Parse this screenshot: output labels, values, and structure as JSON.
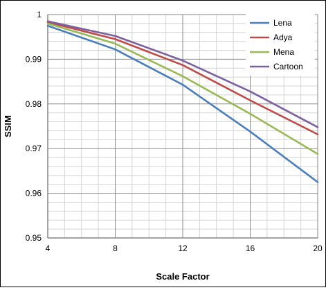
{
  "chart_data": {
    "type": "line",
    "xlabel": "Scale Factor",
    "ylabel": "SSIM",
    "x": [
      4,
      8,
      12,
      16,
      20
    ],
    "xlim": [
      4,
      20
    ],
    "ylim": [
      0.95,
      1.0
    ],
    "x_ticks": [
      "4",
      "8",
      "12",
      "16",
      "20"
    ],
    "y_ticks": [
      "0.95",
      "0.96",
      "0.97",
      "0.98",
      "0.99",
      "1"
    ],
    "grid": true,
    "legend_position": "top-right",
    "series": [
      {
        "name": "Lena",
        "color": "#4a7ebb",
        "values": [
          0.9975,
          0.9922,
          0.9843,
          0.9738,
          0.9625
        ]
      },
      {
        "name": "Adya",
        "color": "#be4b48",
        "values": [
          0.9983,
          0.9945,
          0.9887,
          0.9808,
          0.9732
        ]
      },
      {
        "name": "Mena",
        "color": "#98b954",
        "values": [
          0.998,
          0.9935,
          0.9862,
          0.9778,
          0.9688
        ]
      },
      {
        "name": "Cartoon",
        "color": "#7d60a0",
        "values": [
          0.9985,
          0.9952,
          0.9897,
          0.9828,
          0.9748
        ]
      }
    ]
  }
}
